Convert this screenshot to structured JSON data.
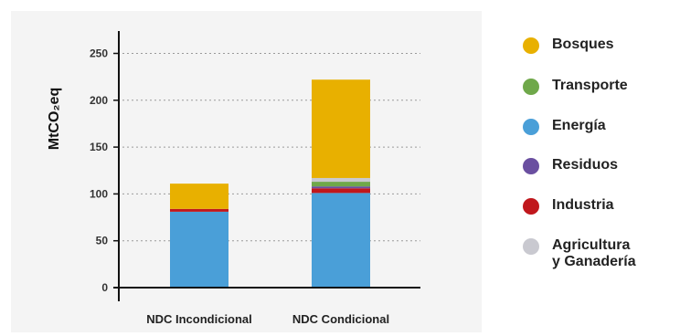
{
  "chart_data": {
    "type": "bar",
    "stacked": true,
    "ylabel": "MtCO₂eq",
    "ylim": [
      0,
      270
    ],
    "yticks": [
      0,
      50,
      100,
      150,
      200,
      250
    ],
    "grid": "horizontal-dotted",
    "legend_position": "right",
    "categories": [
      "NDC Incondicional",
      "NDC Condicional"
    ],
    "series": [
      {
        "name": "Energía",
        "color": "#4a9fd8",
        "values": [
          81,
          101
        ]
      },
      {
        "name": "Industria",
        "color": "#c0171c",
        "values": [
          3,
          5
        ]
      },
      {
        "name": "Residuos",
        "color": "#6a4fa0",
        "values": [
          0,
          2
        ]
      },
      {
        "name": "Transporte",
        "color": "#6fa84a",
        "values": [
          0,
          5
        ]
      },
      {
        "name": "Agricultura\ny Ganadería",
        "color": "#c9c9d0",
        "values": [
          0,
          4
        ]
      },
      {
        "name": "Bosques",
        "color": "#e8b000",
        "values": [
          27,
          105
        ]
      }
    ],
    "legend_order": [
      "Bosques",
      "Transporte",
      "Energía",
      "Residuos",
      "Industria",
      "Agricultura\ny Ganadería"
    ]
  }
}
